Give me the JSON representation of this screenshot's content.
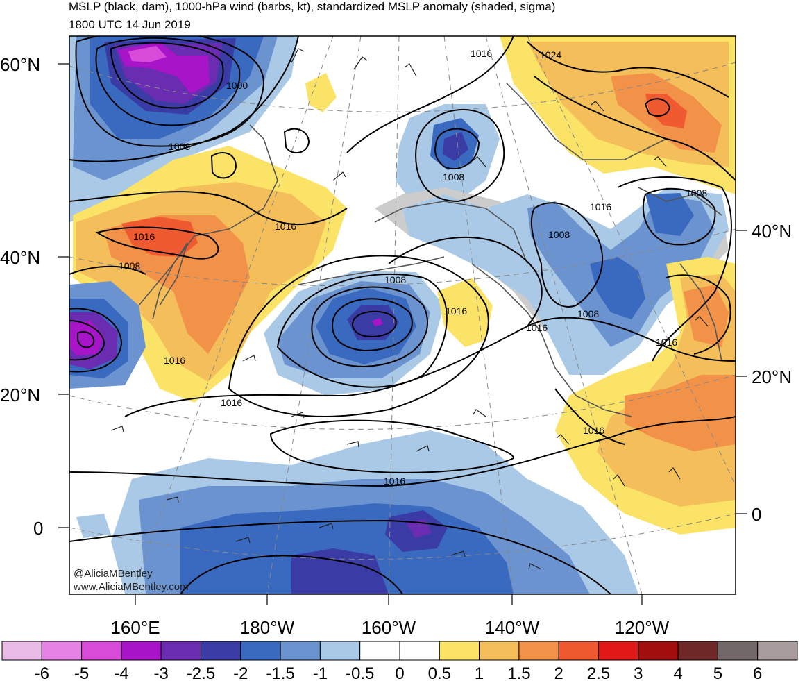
{
  "header": {
    "title": "MSLP (black, dam), 1000-hPa wind (barbs, kt), standardized MSLP anomaly (shaded, sigma)",
    "valid_time": "1800 UTC 14 Jun 2019"
  },
  "credit": {
    "twitter": "@AliciaMBentley",
    "website": "www.AliciaMBentley.com"
  },
  "axes": {
    "left_lat": [
      "60°N",
      "40°N",
      "20°N",
      "0"
    ],
    "right_lat": [
      "40°N",
      "20°N",
      "0"
    ],
    "lon": [
      "160°E",
      "180°W",
      "160°W",
      "140°W",
      "120°W"
    ]
  },
  "contour_labels": [
    "1016",
    "1024",
    "1000",
    "1008",
    "1008",
    "1016",
    "1016",
    "1008",
    "1016",
    "1008",
    "1008",
    "1016",
    "1016",
    "1008",
    "1016",
    "1016",
    "1016",
    "1016",
    "1016",
    "1008"
  ],
  "colors": {
    "anomaly": {
      "-6": "#ebbbe8",
      "-5": "#e681e6",
      "-4": "#d84ad8",
      "-3": "#a814c8",
      "-2.5": "#6a2cb0",
      "-2": "#3b3ba6",
      "-1.5": "#3a6abf",
      "-1": "#6a93d0",
      "-0.5": "#a9c9e6",
      "0": "#ffffff",
      "0.5": "#ffffff",
      "1": "#fbe368",
      "1.5": "#f4be5a",
      "2": "#f29248",
      "2.5": "#f05a30",
      "3": "#e01818",
      "4": "#a00e0e",
      "5": "#6e2828",
      "6": "#736868",
      "land": "#cccccc"
    }
  },
  "colorbar": {
    "labels": [
      "-6",
      "-5",
      "-4",
      "-3",
      "-2.5",
      "-2",
      "-1.5",
      "-1",
      "-0.5",
      "0",
      "0.5",
      "1",
      "1.5",
      "2",
      "2.5",
      "3",
      "4",
      "5",
      "6"
    ],
    "swatches": [
      "#ebbbe8",
      "#e681e6",
      "#d84ad8",
      "#a814c8",
      "#6a2cb0",
      "#3b3ba6",
      "#3a6abf",
      "#6a93d0",
      "#a9c9e6",
      "#ffffff",
      "#ffffff",
      "#fbe368",
      "#f4be5a",
      "#f29248",
      "#f05a30",
      "#e01818",
      "#a00e0e",
      "#6e2828",
      "#736868",
      "#a89c9c"
    ]
  }
}
